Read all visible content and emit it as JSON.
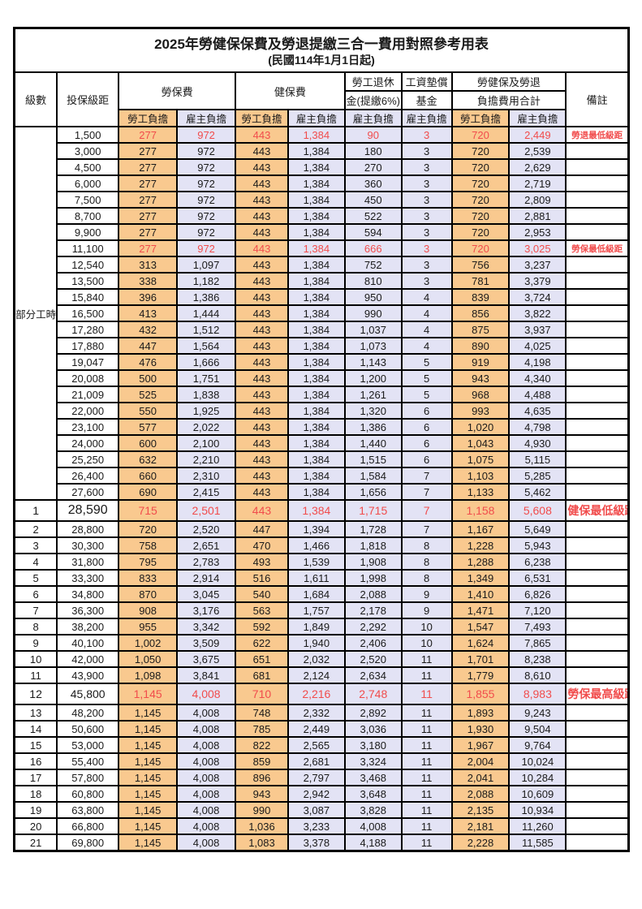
{
  "title": "2025年勞健保保費及勞退提繳三合一費用對照參考用表",
  "subtitle": "(民國114年1月1日起)",
  "colors": {
    "employee_column_bg": "#f9c98f",
    "employer_column_bg": "#e3e3f5",
    "highlight_text": "#f14c4c",
    "border": "#000000"
  },
  "header": {
    "level": "級數",
    "salary_bracket": "投保級距",
    "labor_insurance": "勞保費",
    "health_insurance": "健保費",
    "pension_line1": "勞工退休",
    "pension_line2": "金(提繳6%)",
    "fund_line1": "工資墊償",
    "fund_line2": "基金",
    "total_line1": "勞健保及勞退",
    "total_line2": "負擔費用合計",
    "remark": "備註",
    "employee_label": "勞工負擔",
    "employer_label": "雇主負擔"
  },
  "table": {
    "part_time_label": "部分工時",
    "rows": [
      {
        "level": "",
        "salary": "1,500",
        "labor_emp": "277",
        "labor_er": "972",
        "health_emp": "443",
        "health_er": "1,384",
        "pension_er": "90",
        "fund_er": "3",
        "total_emp": "720",
        "total_er": "2,449",
        "remark": "勞退最低級距",
        "hl": true
      },
      {
        "level": "",
        "salary": "3,000",
        "labor_emp": "277",
        "labor_er": "972",
        "health_emp": "443",
        "health_er": "1,384",
        "pension_er": "180",
        "fund_er": "3",
        "total_emp": "720",
        "total_er": "2,539",
        "remark": ""
      },
      {
        "level": "",
        "salary": "4,500",
        "labor_emp": "277",
        "labor_er": "972",
        "health_emp": "443",
        "health_er": "1,384",
        "pension_er": "270",
        "fund_er": "3",
        "total_emp": "720",
        "total_er": "2,629",
        "remark": ""
      },
      {
        "level": "",
        "salary": "6,000",
        "labor_emp": "277",
        "labor_er": "972",
        "health_emp": "443",
        "health_er": "1,384",
        "pension_er": "360",
        "fund_er": "3",
        "total_emp": "720",
        "total_er": "2,719",
        "remark": ""
      },
      {
        "level": "",
        "salary": "7,500",
        "labor_emp": "277",
        "labor_er": "972",
        "health_emp": "443",
        "health_er": "1,384",
        "pension_er": "450",
        "fund_er": "3",
        "total_emp": "720",
        "total_er": "2,809",
        "remark": ""
      },
      {
        "level": "",
        "salary": "8,700",
        "labor_emp": "277",
        "labor_er": "972",
        "health_emp": "443",
        "health_er": "1,384",
        "pension_er": "522",
        "fund_er": "3",
        "total_emp": "720",
        "total_er": "2,881",
        "remark": ""
      },
      {
        "level": "",
        "salary": "9,900",
        "labor_emp": "277",
        "labor_er": "972",
        "health_emp": "443",
        "health_er": "1,384",
        "pension_er": "594",
        "fund_er": "3",
        "total_emp": "720",
        "total_er": "2,953",
        "remark": ""
      },
      {
        "level": "",
        "salary": "11,100",
        "labor_emp": "277",
        "labor_er": "972",
        "health_emp": "443",
        "health_er": "1,384",
        "pension_er": "666",
        "fund_er": "3",
        "total_emp": "720",
        "total_er": "3,025",
        "remark": "勞保最低級距",
        "hl": true
      },
      {
        "level": "",
        "salary": "12,540",
        "labor_emp": "313",
        "labor_er": "1,097",
        "health_emp": "443",
        "health_er": "1,384",
        "pension_er": "752",
        "fund_er": "3",
        "total_emp": "756",
        "total_er": "3,237",
        "remark": ""
      },
      {
        "level": "",
        "salary": "13,500",
        "labor_emp": "338",
        "labor_er": "1,182",
        "health_emp": "443",
        "health_er": "1,384",
        "pension_er": "810",
        "fund_er": "3",
        "total_emp": "781",
        "total_er": "3,379",
        "remark": ""
      },
      {
        "level": "",
        "salary": "15,840",
        "labor_emp": "396",
        "labor_er": "1,386",
        "health_emp": "443",
        "health_er": "1,384",
        "pension_er": "950",
        "fund_er": "4",
        "total_emp": "839",
        "total_er": "3,724",
        "remark": ""
      },
      {
        "level": "",
        "salary": "16,500",
        "labor_emp": "413",
        "labor_er": "1,444",
        "health_emp": "443",
        "health_er": "1,384",
        "pension_er": "990",
        "fund_er": "4",
        "total_emp": "856",
        "total_er": "3,822",
        "remark": ""
      },
      {
        "level": "",
        "salary": "17,280",
        "labor_emp": "432",
        "labor_er": "1,512",
        "health_emp": "443",
        "health_er": "1,384",
        "pension_er": "1,037",
        "fund_er": "4",
        "total_emp": "875",
        "total_er": "3,937",
        "remark": ""
      },
      {
        "level": "",
        "salary": "17,880",
        "labor_emp": "447",
        "labor_er": "1,564",
        "health_emp": "443",
        "health_er": "1,384",
        "pension_er": "1,073",
        "fund_er": "4",
        "total_emp": "890",
        "total_er": "4,025",
        "remark": ""
      },
      {
        "level": "",
        "salary": "19,047",
        "labor_emp": "476",
        "labor_er": "1,666",
        "health_emp": "443",
        "health_er": "1,384",
        "pension_er": "1,143",
        "fund_er": "5",
        "total_emp": "919",
        "total_er": "4,198",
        "remark": ""
      },
      {
        "level": "",
        "salary": "20,008",
        "labor_emp": "500",
        "labor_er": "1,751",
        "health_emp": "443",
        "health_er": "1,384",
        "pension_er": "1,200",
        "fund_er": "5",
        "total_emp": "943",
        "total_er": "4,340",
        "remark": ""
      },
      {
        "level": "",
        "salary": "21,009",
        "labor_emp": "525",
        "labor_er": "1,838",
        "health_emp": "443",
        "health_er": "1,384",
        "pension_er": "1,261",
        "fund_er": "5",
        "total_emp": "968",
        "total_er": "4,488",
        "remark": ""
      },
      {
        "level": "",
        "salary": "22,000",
        "labor_emp": "550",
        "labor_er": "1,925",
        "health_emp": "443",
        "health_er": "1,384",
        "pension_er": "1,320",
        "fund_er": "6",
        "total_emp": "993",
        "total_er": "4,635",
        "remark": ""
      },
      {
        "level": "",
        "salary": "23,100",
        "labor_emp": "577",
        "labor_er": "2,022",
        "health_emp": "443",
        "health_er": "1,384",
        "pension_er": "1,386",
        "fund_er": "6",
        "total_emp": "1,020",
        "total_er": "4,798",
        "remark": ""
      },
      {
        "level": "",
        "salary": "24,000",
        "labor_emp": "600",
        "labor_er": "2,100",
        "health_emp": "443",
        "health_er": "1,384",
        "pension_er": "1,440",
        "fund_er": "6",
        "total_emp": "1,043",
        "total_er": "4,930",
        "remark": ""
      },
      {
        "level": "",
        "salary": "25,250",
        "labor_emp": "632",
        "labor_er": "2,210",
        "health_emp": "443",
        "health_er": "1,384",
        "pension_er": "1,515",
        "fund_er": "6",
        "total_emp": "1,075",
        "total_er": "5,115",
        "remark": ""
      },
      {
        "level": "",
        "salary": "26,400",
        "labor_emp": "660",
        "labor_er": "2,310",
        "health_emp": "443",
        "health_er": "1,384",
        "pension_er": "1,584",
        "fund_er": "7",
        "total_emp": "1,103",
        "total_er": "5,285",
        "remark": ""
      },
      {
        "level": "",
        "salary": "27,600",
        "labor_emp": "690",
        "labor_er": "2,415",
        "health_emp": "443",
        "health_er": "1,384",
        "pension_er": "1,656",
        "fund_er": "7",
        "total_emp": "1,133",
        "total_er": "5,462",
        "remark": ""
      },
      {
        "level": "1",
        "salary": "28,590",
        "labor_emp": "715",
        "labor_er": "2,501",
        "health_emp": "443",
        "health_er": "1,384",
        "pension_er": "1,715",
        "fund_er": "7",
        "total_emp": "1,158",
        "total_er": "5,608",
        "remark": "健保最低級距",
        "hl": true,
        "tall": true,
        "big": true
      },
      {
        "level": "2",
        "salary": "28,800",
        "labor_emp": "720",
        "labor_er": "2,520",
        "health_emp": "447",
        "health_er": "1,394",
        "pension_er": "1,728",
        "fund_er": "7",
        "total_emp": "1,167",
        "total_er": "5,649",
        "remark": ""
      },
      {
        "level": "3",
        "salary": "30,300",
        "labor_emp": "758",
        "labor_er": "2,651",
        "health_emp": "470",
        "health_er": "1,466",
        "pension_er": "1,818",
        "fund_er": "8",
        "total_emp": "1,228",
        "total_er": "5,943",
        "remark": ""
      },
      {
        "level": "4",
        "salary": "31,800",
        "labor_emp": "795",
        "labor_er": "2,783",
        "health_emp": "493",
        "health_er": "1,539",
        "pension_er": "1,908",
        "fund_er": "8",
        "total_emp": "1,288",
        "total_er": "6,238",
        "remark": ""
      },
      {
        "level": "5",
        "salary": "33,300",
        "labor_emp": "833",
        "labor_er": "2,914",
        "health_emp": "516",
        "health_er": "1,611",
        "pension_er": "1,998",
        "fund_er": "8",
        "total_emp": "1,349",
        "total_er": "6,531",
        "remark": ""
      },
      {
        "level": "6",
        "salary": "34,800",
        "labor_emp": "870",
        "labor_er": "3,045",
        "health_emp": "540",
        "health_er": "1,684",
        "pension_er": "2,088",
        "fund_er": "9",
        "total_emp": "1,410",
        "total_er": "6,826",
        "remark": ""
      },
      {
        "level": "7",
        "salary": "36,300",
        "labor_emp": "908",
        "labor_er": "3,176",
        "health_emp": "563",
        "health_er": "1,757",
        "pension_er": "2,178",
        "fund_er": "9",
        "total_emp": "1,471",
        "total_er": "7,120",
        "remark": ""
      },
      {
        "level": "8",
        "salary": "38,200",
        "labor_emp": "955",
        "labor_er": "3,342",
        "health_emp": "592",
        "health_er": "1,849",
        "pension_er": "2,292",
        "fund_er": "10",
        "total_emp": "1,547",
        "total_er": "7,493",
        "remark": ""
      },
      {
        "level": "9",
        "salary": "40,100",
        "labor_emp": "1,002",
        "labor_er": "3,509",
        "health_emp": "622",
        "health_er": "1,940",
        "pension_er": "2,406",
        "fund_er": "10",
        "total_emp": "1,624",
        "total_er": "7,865",
        "remark": ""
      },
      {
        "level": "10",
        "salary": "42,000",
        "labor_emp": "1,050",
        "labor_er": "3,675",
        "health_emp": "651",
        "health_er": "2,032",
        "pension_er": "2,520",
        "fund_er": "11",
        "total_emp": "1,701",
        "total_er": "8,238",
        "remark": ""
      },
      {
        "level": "11",
        "salary": "43,900",
        "labor_emp": "1,098",
        "labor_er": "3,841",
        "health_emp": "681",
        "health_er": "2,124",
        "pension_er": "2,634",
        "fund_er": "11",
        "total_emp": "1,779",
        "total_er": "8,610",
        "remark": ""
      },
      {
        "level": "12",
        "salary": "45,800",
        "labor_emp": "1,145",
        "labor_er": "4,008",
        "health_emp": "710",
        "health_er": "2,216",
        "pension_er": "2,748",
        "fund_er": "11",
        "total_emp": "1,855",
        "total_er": "8,983",
        "remark": "勞保最高級距",
        "hl": true,
        "tall": true
      },
      {
        "level": "13",
        "salary": "48,200",
        "labor_emp": "1,145",
        "labor_er": "4,008",
        "health_emp": "748",
        "health_er": "2,332",
        "pension_er": "2,892",
        "fund_er": "11",
        "total_emp": "1,893",
        "total_er": "9,243",
        "remark": ""
      },
      {
        "level": "14",
        "salary": "50,600",
        "labor_emp": "1,145",
        "labor_er": "4,008",
        "health_emp": "785",
        "health_er": "2,449",
        "pension_er": "3,036",
        "fund_er": "11",
        "total_emp": "1,930",
        "total_er": "9,504",
        "remark": ""
      },
      {
        "level": "15",
        "salary": "53,000",
        "labor_emp": "1,145",
        "labor_er": "4,008",
        "health_emp": "822",
        "health_er": "2,565",
        "pension_er": "3,180",
        "fund_er": "11",
        "total_emp": "1,967",
        "total_er": "9,764",
        "remark": ""
      },
      {
        "level": "16",
        "salary": "55,400",
        "labor_emp": "1,145",
        "labor_er": "4,008",
        "health_emp": "859",
        "health_er": "2,681",
        "pension_er": "3,324",
        "fund_er": "11",
        "total_emp": "2,004",
        "total_er": "10,024",
        "remark": ""
      },
      {
        "level": "17",
        "salary": "57,800",
        "labor_emp": "1,145",
        "labor_er": "4,008",
        "health_emp": "896",
        "health_er": "2,797",
        "pension_er": "3,468",
        "fund_er": "11",
        "total_emp": "2,041",
        "total_er": "10,284",
        "remark": ""
      },
      {
        "level": "18",
        "salary": "60,800",
        "labor_emp": "1,145",
        "labor_er": "4,008",
        "health_emp": "943",
        "health_er": "2,942",
        "pension_er": "3,648",
        "fund_er": "11",
        "total_emp": "2,088",
        "total_er": "10,609",
        "remark": ""
      },
      {
        "level": "19",
        "salary": "63,800",
        "labor_emp": "1,145",
        "labor_er": "4,008",
        "health_emp": "990",
        "health_er": "3,087",
        "pension_er": "3,828",
        "fund_er": "11",
        "total_emp": "2,135",
        "total_er": "10,934",
        "remark": ""
      },
      {
        "level": "20",
        "salary": "66,800",
        "labor_emp": "1,145",
        "labor_er": "4,008",
        "health_emp": "1,036",
        "health_er": "3,233",
        "pension_er": "4,008",
        "fund_er": "11",
        "total_emp": "2,181",
        "total_er": "11,260",
        "remark": ""
      },
      {
        "level": "21",
        "salary": "69,800",
        "labor_emp": "1,145",
        "labor_er": "4,008",
        "health_emp": "1,083",
        "health_er": "3,378",
        "pension_er": "4,188",
        "fund_er": "11",
        "total_emp": "2,228",
        "total_er": "11,585",
        "remark": ""
      }
    ]
  }
}
